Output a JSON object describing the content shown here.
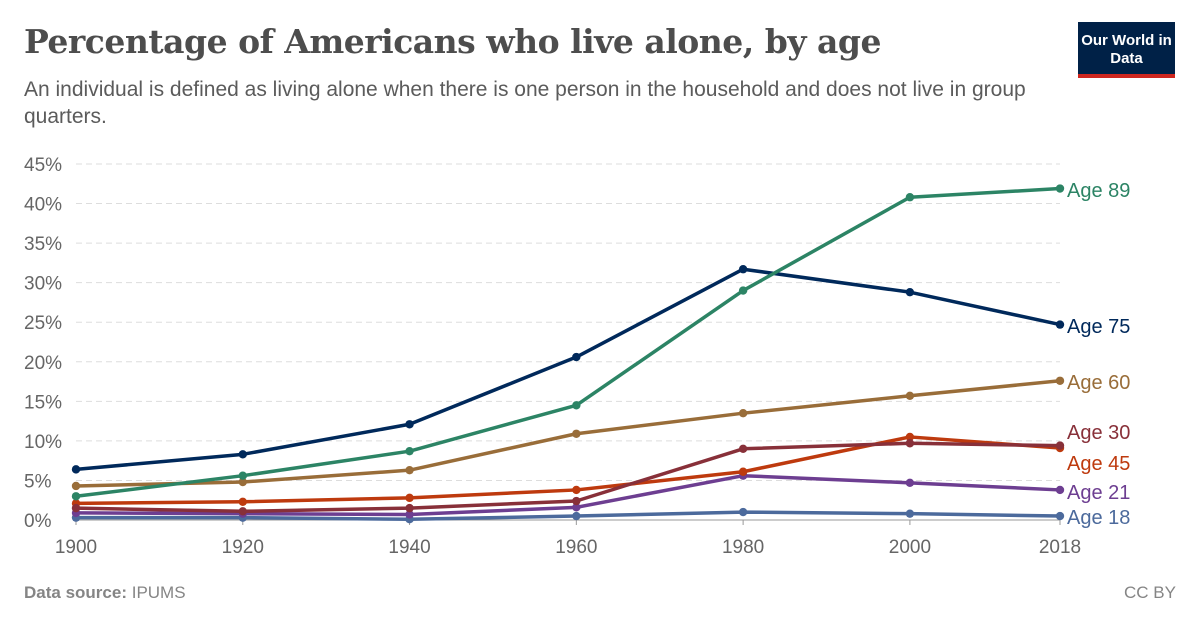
{
  "header": {
    "title": "Percentage of Americans who live alone, by age",
    "subtitle": "An individual is defined as living alone when there is one person in the household and does not live in group quarters.",
    "logo": "Our World in Data"
  },
  "footer": {
    "source_label": "Data source:",
    "source": "IPUMS",
    "license": "CC BY"
  },
  "chart_data": {
    "type": "line",
    "title": "Percentage of Americans who live alone, by age",
    "x": [
      1900,
      1920,
      1940,
      1960,
      1980,
      2000,
      2018
    ],
    "x_ticks": [
      "1900",
      "1920",
      "1940",
      "1960",
      "1980",
      "2000",
      "2018"
    ],
    "y_ticks": [
      "0%",
      "5%",
      "10%",
      "15%",
      "20%",
      "25%",
      "30%",
      "35%",
      "40%",
      "45%"
    ],
    "ylim": [
      0,
      45
    ],
    "grid": "horizontal dashed",
    "legend": "inline labels at right end",
    "series": [
      {
        "name": "Age 89",
        "color": "#2c8465",
        "values": [
          3.0,
          5.6,
          8.7,
          14.5,
          29.0,
          40.8,
          41.9
        ]
      },
      {
        "name": "Age 75",
        "color": "#00295b",
        "values": [
          6.4,
          8.3,
          12.1,
          20.6,
          31.7,
          28.8,
          24.7
        ]
      },
      {
        "name": "Age 60",
        "color": "#996d39",
        "values": [
          4.3,
          4.8,
          6.3,
          10.9,
          13.5,
          15.7,
          17.6
        ]
      },
      {
        "name": "Age 30",
        "color": "#883039",
        "values": [
          1.5,
          1.1,
          1.5,
          2.4,
          9.0,
          9.7,
          9.4
        ]
      },
      {
        "name": "Age 45",
        "color": "#be3a0e",
        "values": [
          2.1,
          2.3,
          2.8,
          3.8,
          6.1,
          10.5,
          9.1
        ]
      },
      {
        "name": "Age 21",
        "color": "#6d3e91",
        "values": [
          0.9,
          0.8,
          0.7,
          1.6,
          5.6,
          4.7,
          3.8
        ]
      },
      {
        "name": "Age 18",
        "color": "#4c6a9c",
        "values": [
          0.3,
          0.3,
          0.1,
          0.5,
          1.0,
          0.8,
          0.5
        ]
      }
    ],
    "label_order": [
      "Age 89",
      "Age 75",
      "Age 60",
      "Age 30",
      "Age 45",
      "Age 21",
      "Age 18"
    ]
  }
}
